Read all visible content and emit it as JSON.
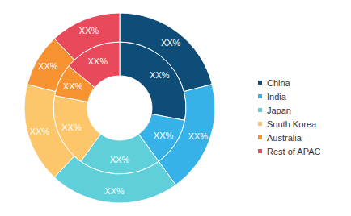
{
  "chart_data": {
    "type": "pie",
    "categories": [
      "China",
      "India",
      "Japan",
      "South Korea",
      "Australia",
      "Rest of APAC"
    ],
    "colors": [
      "#0e4d78",
      "#36b2e8",
      "#5fd0da",
      "#fdc66b",
      "#f6922f",
      "#e84a5c"
    ],
    "legend": "right",
    "data_labels": true,
    "series": [
      {
        "values": [
          28,
          12,
          20,
          18,
          8,
          14
        ],
        "value_labels": [
          "XX%",
          "XX%",
          "XX%",
          "XX%",
          "XX%",
          "XX%"
        ]
      },
      {
        "values": [
          21,
          19,
          22,
          17,
          9,
          12
        ],
        "value_labels": [
          "XX%",
          "XX%",
          "XX%",
          "XX%",
          "XX%",
          "XX%"
        ]
      }
    ]
  }
}
